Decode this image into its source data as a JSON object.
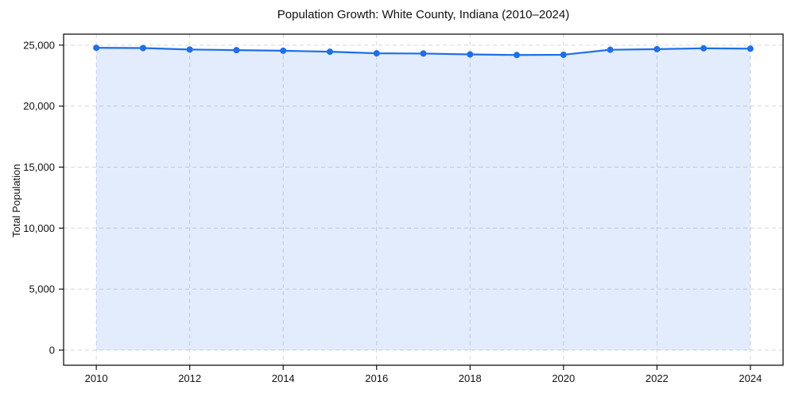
{
  "chart_data": {
    "type": "area",
    "title": "Population Growth: White County, Indiana (2010–2024)",
    "xlabel": "",
    "ylabel": "Total Population",
    "x": [
      2010,
      2011,
      2012,
      2013,
      2014,
      2015,
      2016,
      2017,
      2018,
      2019,
      2020,
      2021,
      2022,
      2023,
      2024
    ],
    "series": [
      {
        "name": "Total Population",
        "values": [
          24780,
          24760,
          24640,
          24590,
          24540,
          24460,
          24330,
          24310,
          24240,
          24190,
          24210,
          24620,
          24670,
          24740,
          24710
        ]
      }
    ],
    "xlim": [
      2009.3,
      2024.7
    ],
    "ylim": [
      -1240,
      25900
    ],
    "xticks": [
      2010,
      2012,
      2014,
      2016,
      2018,
      2020,
      2022,
      2024
    ],
    "xtick_labels": [
      "2010",
      "2012",
      "2014",
      "2016",
      "2018",
      "2020",
      "2022",
      "2024"
    ],
    "yticks": [
      0,
      5000,
      10000,
      15000,
      20000,
      25000
    ],
    "ytick_labels": [
      "0",
      "5,000",
      "10,000",
      "15,000",
      "20,000",
      "25,000"
    ],
    "grid": true,
    "grid_style": "dashed",
    "legend": false,
    "baseline_value": 0,
    "colors": {
      "line": "#1e6fe8",
      "marker": "#1e6fe8",
      "fill": "rgba(30,110,232,0.13)",
      "gridline": "#d6d6d6",
      "spine": "#000000",
      "text": "#111111",
      "background": "#ffffff"
    }
  }
}
